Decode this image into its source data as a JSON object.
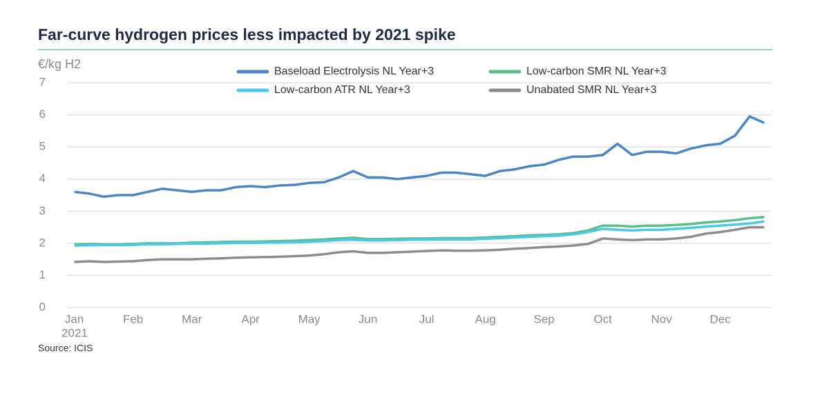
{
  "chart_data": {
    "type": "line",
    "title": "Far-curve hydrogen prices less impacted by 2021 spike",
    "y_label": "€/kg H2",
    "source": "Source: ICIS",
    "x_year_label": "2021",
    "categories": [
      "Jan",
      null,
      null,
      null,
      "Feb",
      null,
      null,
      null,
      "Mar",
      null,
      null,
      null,
      "Apr",
      null,
      null,
      null,
      "May",
      null,
      null,
      null,
      "Jun",
      null,
      null,
      null,
      "Jul",
      null,
      null,
      null,
      "Aug",
      null,
      null,
      null,
      "Sep",
      null,
      null,
      null,
      "Oct",
      null,
      null,
      null,
      "Nov",
      null,
      null,
      null,
      "Dec",
      null,
      null,
      null
    ],
    "series": [
      {
        "name": "Baseload Electrolysis NL Year+3",
        "color": "#4a86c0",
        "values": [
          3.6,
          3.55,
          3.45,
          3.5,
          3.5,
          3.6,
          3.7,
          3.65,
          3.6,
          3.65,
          3.65,
          3.75,
          3.78,
          3.75,
          3.8,
          3.82,
          3.88,
          3.9,
          4.05,
          4.25,
          4.05,
          4.05,
          4.0,
          4.05,
          4.1,
          4.2,
          4.2,
          4.15,
          4.1,
          4.25,
          4.3,
          4.4,
          4.45,
          4.6,
          4.7,
          4.7,
          4.75,
          5.1,
          4.75,
          4.85,
          4.85,
          4.8,
          4.95,
          5.05,
          5.1,
          5.35,
          5.95,
          5.75
        ]
      },
      {
        "name": "Low-carbon SMR NL Year+3",
        "color": "#5cbf8a",
        "values": [
          1.97,
          1.98,
          1.97,
          1.97,
          1.98,
          2.0,
          2.0,
          2.0,
          2.02,
          2.03,
          2.04,
          2.05,
          2.05,
          2.06,
          2.07,
          2.08,
          2.1,
          2.12,
          2.15,
          2.17,
          2.13,
          2.13,
          2.14,
          2.15,
          2.15,
          2.16,
          2.16,
          2.16,
          2.18,
          2.2,
          2.22,
          2.25,
          2.26,
          2.28,
          2.32,
          2.4,
          2.55,
          2.55,
          2.52,
          2.55,
          2.55,
          2.57,
          2.6,
          2.65,
          2.68,
          2.72,
          2.78,
          2.82
        ]
      },
      {
        "name": "Low-carbon ATR NL Year+3",
        "color": "#4cc8e8",
        "values": [
          1.93,
          1.94,
          1.95,
          1.95,
          1.95,
          1.97,
          1.97,
          1.98,
          1.99,
          1.99,
          2.0,
          2.01,
          2.01,
          2.02,
          2.02,
          2.03,
          2.05,
          2.07,
          2.1,
          2.11,
          2.09,
          2.09,
          2.1,
          2.11,
          2.11,
          2.12,
          2.12,
          2.12,
          2.14,
          2.16,
          2.18,
          2.2,
          2.22,
          2.24,
          2.28,
          2.35,
          2.45,
          2.42,
          2.4,
          2.42,
          2.42,
          2.45,
          2.48,
          2.52,
          2.55,
          2.58,
          2.62,
          2.68
        ]
      },
      {
        "name": "Unabated SMR NL Year+3",
        "color": "#8c8c8c",
        "values": [
          1.42,
          1.44,
          1.42,
          1.43,
          1.44,
          1.48,
          1.5,
          1.5,
          1.5,
          1.52,
          1.53,
          1.55,
          1.56,
          1.57,
          1.58,
          1.6,
          1.62,
          1.66,
          1.72,
          1.75,
          1.7,
          1.7,
          1.72,
          1.74,
          1.76,
          1.78,
          1.77,
          1.77,
          1.78,
          1.8,
          1.83,
          1.85,
          1.88,
          1.9,
          1.93,
          1.98,
          2.15,
          2.12,
          2.1,
          2.12,
          2.12,
          2.15,
          2.2,
          2.3,
          2.35,
          2.42,
          2.5,
          2.5
        ]
      }
    ],
    "ylim": [
      0,
      7
    ],
    "yticks": [
      0,
      1,
      2,
      3,
      4,
      5,
      6,
      7
    ],
    "grid": true
  }
}
